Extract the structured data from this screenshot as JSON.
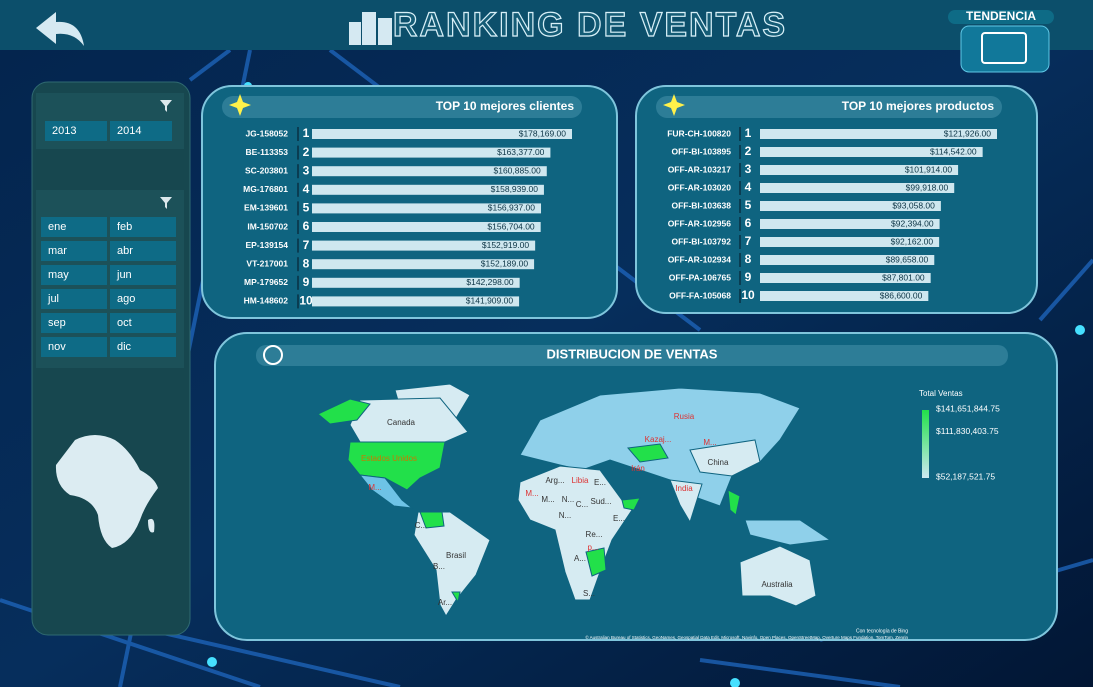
{
  "header": {
    "title": "RANKING DE VENTAS",
    "trend_button": "TENDENCIA"
  },
  "filters": {
    "years": [
      "2013",
      "2014"
    ],
    "months": [
      "ene",
      "feb",
      "mar",
      "abr",
      "may",
      "jun",
      "jul",
      "ago",
      "sep",
      "oct",
      "nov",
      "dic"
    ]
  },
  "chart_data": [
    {
      "type": "bar",
      "title": "TOP 10 mejores clientes",
      "categories": [
        "JG-158052",
        "BE-113353",
        "SC-203801",
        "MG-176801",
        "EM-139601",
        "IM-150702",
        "EP-139154",
        "VT-217001",
        "MP-179652",
        "HM-148602"
      ],
      "ranks": [
        1,
        2,
        3,
        4,
        5,
        6,
        7,
        8,
        9,
        10
      ],
      "values": [
        178169,
        163377,
        160885,
        158939,
        156937,
        156704,
        152919,
        152189,
        142298,
        141909
      ],
      "value_labels": [
        "$178,169.00",
        "$163,377.00",
        "$160,885.00",
        "$158,939.00",
        "$156,937.00",
        "$156,704.00",
        "$152,919.00",
        "$152,189.00",
        "$142,298.00",
        "$141,909.00"
      ],
      "color": "#cfe7ef"
    },
    {
      "type": "bar",
      "title": "TOP 10 mejores productos",
      "categories": [
        "FUR-CH-100820",
        "OFF-BI-103895",
        "OFF-AR-103217",
        "OFF-AR-103020",
        "OFF-BI-103638",
        "OFF-AR-102956",
        "OFF-BI-103792",
        "OFF-AR-102934",
        "OFF-PA-106765",
        "OFF-FA-105068"
      ],
      "ranks": [
        1,
        2,
        3,
        4,
        5,
        6,
        7,
        8,
        9,
        10
      ],
      "values": [
        121926,
        114542,
        101914,
        99918,
        93058,
        92394,
        92162,
        89658,
        87801,
        86600
      ],
      "value_labels": [
        "$121,926.00",
        "$114,542.00",
        "$101,914.00",
        "$99,918.00",
        "$93,058.00",
        "$92,394.00",
        "$92,162.00",
        "$89,658.00",
        "$87,801.00",
        "$86,600.00"
      ],
      "color": "#cfe7ef"
    }
  ],
  "map": {
    "title": "DISTRIBUCION DE VENTAS",
    "legend_title": "Total Ventas",
    "legend_labels": [
      {
        "value": 141651844.75,
        "label": "$141,651,844.75"
      },
      {
        "value": 111830403.75,
        "label": "$111,830,403.75"
      },
      {
        "value": 52187521.75,
        "label": "$52,187,521.75"
      }
    ],
    "countries": [
      "Canada",
      "Estados Unidos",
      "M...",
      "Rusia",
      "Kazaj...",
      "M...",
      "China",
      "Irán",
      "India",
      "Libia",
      "Arg...",
      "E...",
      "M...",
      "M...",
      "N...",
      "C...",
      "Sud...",
      "N...",
      "E...",
      "C...",
      "Brasil",
      "B...",
      "Ar...",
      "Re...",
      "p...",
      "A...",
      "S...",
      "Australia"
    ],
    "credit": "Con tecnología de Bing",
    "attribution": "© Australian Bureau of Statistics, GeoNames, Geospatial Data Edit, Microsoft, Navinfo, Open Places, OpenStreetMap, Overture Maps Fundation, TomTom, Zenrin"
  }
}
